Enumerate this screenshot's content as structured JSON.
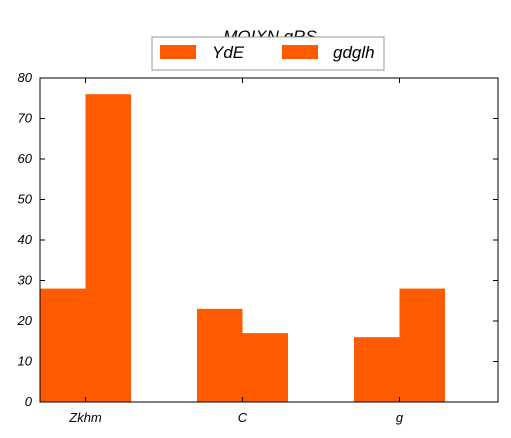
{
  "chart_data": {
    "type": "bar",
    "title": "MOIXN gRS",
    "xlabel": "",
    "ylabel": "",
    "categories": [
      "Zkhm",
      "C",
      "g"
    ],
    "series": [
      {
        "name": "YdE",
        "values": [
          28,
          23,
          16
        ],
        "color": "#ff5a00"
      },
      {
        "name": "gdglh",
        "values": [
          76,
          17,
          28
        ],
        "color": "#ff5a00"
      }
    ],
    "ylim": [
      0,
      80
    ],
    "yticks": [
      0,
      10,
      20,
      30,
      40,
      50,
      60,
      70,
      80
    ],
    "grid": false,
    "legend_position": "top-center"
  }
}
